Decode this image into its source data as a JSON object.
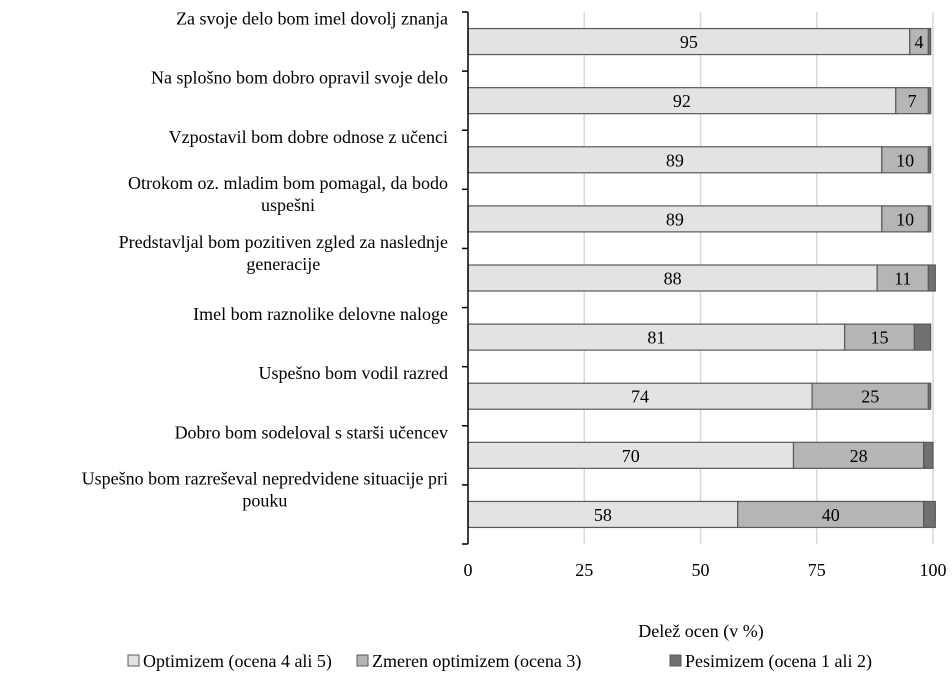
{
  "chart_data": {
    "type": "bar",
    "orientation": "horizontal",
    "stacked": true,
    "title": "",
    "xlabel": "Delež ocen (v %)",
    "ylabel": "",
    "xlim": [
      0,
      100
    ],
    "x_ticks": [
      0,
      25,
      50,
      75,
      100
    ],
    "grid": true,
    "legend_position": "bottom",
    "categories": [
      "Za svoje delo bom imel dovolj znanja",
      "Na splošno bom dobro opravil svoje delo",
      "Vzpostavil bom dobre odnose z učenci",
      "Otrokom oz. mladim bom pomagal, da bodo uspešni",
      "Predstavljal bom pozitiven zgled za naslednje generacije",
      "Imel bom raznolike delovne naloge",
      "Uspešno bom vodil razred",
      "Dobro bom sodeloval s starši učencev",
      "Uspešno bom razreševal nepredvidene situacije pri pouku"
    ],
    "category_lines": [
      [
        "Za svoje delo bom imel dovolj znanja"
      ],
      [
        "Na splošno bom dobro opravil svoje delo"
      ],
      [
        "Vzpostavil bom dobre odnose z učenci"
      ],
      [
        "Otrokom oz. mladim bom pomagal, da bodo",
        "uspešni"
      ],
      [
        "Predstavljal bom pozitiven zgled za naslednje",
        "generacije"
      ],
      [
        "Imel bom raznolike delovne naloge"
      ],
      [
        "Uspešno bom vodil razred"
      ],
      [
        "Dobro bom sodeloval s starši učencev"
      ],
      [
        "Uspešno bom razreševal nepredvidene situacije pri",
        "pouku"
      ]
    ],
    "series": [
      {
        "name": "Optimizem (ocena 4 ali 5)",
        "color": "#e3e3e3",
        "values": [
          95,
          92,
          89,
          89,
          88,
          81,
          74,
          70,
          58
        ],
        "labels": [
          "95",
          "92",
          "89",
          "89",
          "88",
          "81",
          "74",
          "70",
          "58"
        ]
      },
      {
        "name": "Zmeren optimizem (ocena 3)",
        "color": "#b5b5b5",
        "values": [
          4,
          7,
          10,
          10,
          11,
          15,
          25,
          28,
          40
        ],
        "labels": [
          "4",
          "7",
          "10",
          "10",
          "11",
          "15",
          "25",
          "28",
          "40"
        ]
      },
      {
        "name": "Pesimizem (ocena 1 ali 2)",
        "color": "#707070",
        "values": [
          0.5,
          0.5,
          0.5,
          0.5,
          1.5,
          3.5,
          0.5,
          2,
          2.5
        ],
        "labels": [
          "",
          "",
          "",
          "",
          "",
          "",
          "",
          "",
          ""
        ]
      }
    ]
  }
}
